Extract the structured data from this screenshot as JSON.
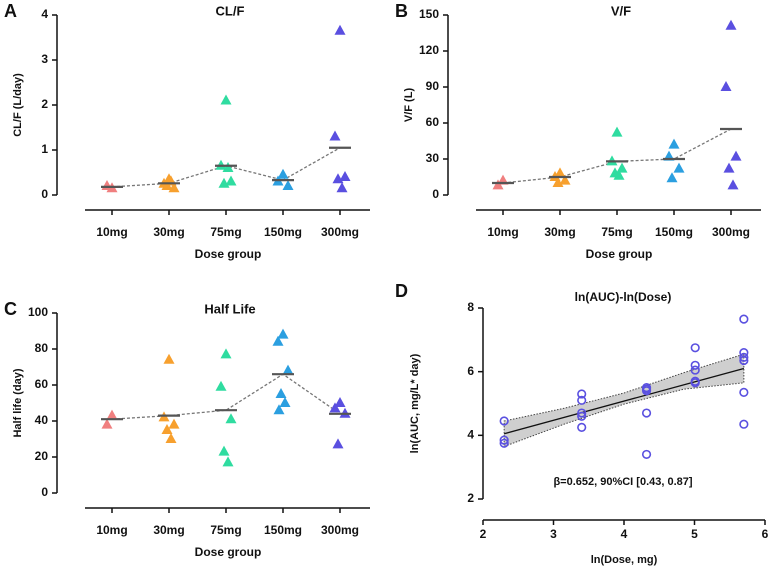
{
  "chart_data": [
    {
      "type": "dot",
      "panel_label": "A",
      "title": "CL/F",
      "y_label": "CL/F (L/day)",
      "x_label": "Dose group",
      "categories": [
        "10mg",
        "30mg",
        "75mg",
        "150mg",
        "300mg"
      ],
      "colors": [
        "#f07f7f",
        "#f7a02e",
        "#2fdca0",
        "#2b9fe0",
        "#5a4fe0"
      ],
      "points": [
        [
          0.15,
          0.2
        ],
        [
          0.35,
          0.25,
          0.15,
          0.2,
          0.3
        ],
        [
          2.1,
          0.65,
          0.3,
          0.25,
          0.6
        ],
        [
          0.45,
          0.3,
          0.2
        ],
        [
          3.65,
          1.3,
          0.4,
          0.35,
          0.15
        ]
      ],
      "means": [
        0.18,
        0.26,
        0.65,
        0.33,
        1.05
      ],
      "ylim": [
        0,
        4
      ],
      "yticks": [
        0,
        1,
        2,
        3,
        4
      ]
    },
    {
      "type": "dot",
      "panel_label": "B",
      "title": "V/F",
      "y_label": "V/F (L)",
      "x_label": "Dose group",
      "categories": [
        "10mg",
        "30mg",
        "75mg",
        "150mg",
        "300mg"
      ],
      "colors": [
        "#f07f7f",
        "#f7a02e",
        "#2fdca0",
        "#2b9fe0",
        "#5a4fe0"
      ],
      "points": [
        [
          12,
          8
        ],
        [
          18,
          15,
          12,
          10
        ],
        [
          52,
          28,
          22,
          18,
          16
        ],
        [
          42,
          32,
          22,
          14
        ],
        [
          141,
          90,
          32,
          22,
          8
        ]
      ],
      "means": [
        10,
        15,
        28,
        30,
        55
      ],
      "ylim": [
        0,
        150
      ],
      "yticks": [
        0,
        30,
        60,
        90,
        120,
        150
      ]
    },
    {
      "type": "dot",
      "panel_label": "C",
      "title": "Half Life",
      "y_label": "Half life (day)",
      "x_label": "Dose group",
      "categories": [
        "10mg",
        "30mg",
        "75mg",
        "150mg",
        "300mg"
      ],
      "colors": [
        "#f07f7f",
        "#f7a02e",
        "#2fdca0",
        "#2b9fe0",
        "#5a4fe0"
      ],
      "points": [
        [
          43,
          38
        ],
        [
          74,
          42,
          38,
          35,
          30
        ],
        [
          77,
          59,
          41,
          23,
          17
        ],
        [
          88,
          84,
          68,
          55,
          50,
          46
        ],
        [
          50,
          47,
          44,
          27
        ]
      ],
      "means": [
        41,
        43,
        46,
        66,
        44
      ],
      "ylim": [
        0,
        100
      ],
      "yticks": [
        0,
        20,
        40,
        60,
        80,
        100
      ]
    },
    {
      "type": "scatter",
      "panel_label": "D",
      "title": "ln(AUC)-ln(Dose)",
      "y_label": "ln(AUC, mg/L* day)",
      "x_label": "ln(Dose, mg)",
      "annotation": "β=0.652,  90%CI [0.43, 0.87]",
      "color": "#5a50e0",
      "x": [
        2.3,
        2.3,
        2.3,
        3.4,
        3.4,
        3.4,
        3.4,
        3.4,
        4.32,
        4.32,
        4.32,
        4.32,
        4.32,
        5.01,
        5.01,
        5.01,
        5.01,
        5.01,
        5.7,
        5.7,
        5.7,
        5.7,
        5.7,
        5.7
      ],
      "y": [
        4.45,
        3.85,
        3.75,
        5.3,
        5.1,
        4.7,
        4.6,
        4.25,
        5.5,
        5.45,
        5.4,
        4.7,
        3.4,
        6.75,
        6.2,
        6.05,
        5.7,
        5.65,
        7.65,
        6.6,
        6.45,
        6.35,
        5.35,
        4.35
      ],
      "fit": {
        "x": [
          2.3,
          5.7
        ],
        "y": [
          4.05,
          6.1
        ]
      },
      "band": {
        "x": [
          2.3,
          3.15,
          4.0,
          4.85,
          5.7
        ],
        "upper": [
          4.45,
          4.85,
          5.33,
          5.97,
          6.55
        ],
        "lower": [
          3.65,
          4.35,
          4.98,
          5.45,
          5.65
        ]
      },
      "xlim": [
        2,
        6
      ],
      "xticks": [
        2,
        3,
        4,
        5,
        6
      ],
      "ylim": [
        2,
        8
      ],
      "yticks": [
        2,
        4,
        6,
        8
      ]
    }
  ]
}
